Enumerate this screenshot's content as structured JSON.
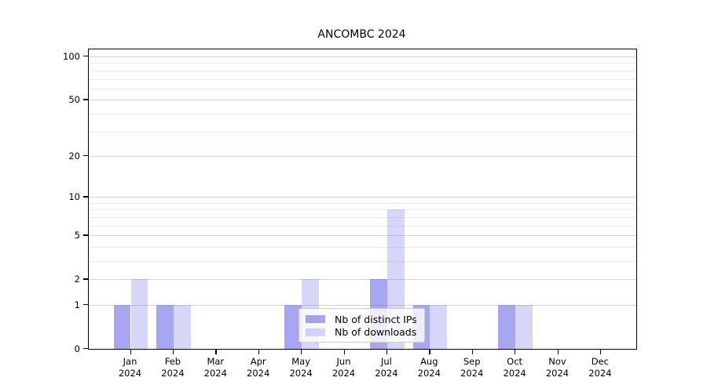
{
  "chart_data": {
    "type": "bar",
    "title": "ANCOMBC 2024",
    "categories": [
      "Jan",
      "Feb",
      "Mar",
      "Apr",
      "May",
      "Jun",
      "Jul",
      "Aug",
      "Sep",
      "Oct",
      "Nov",
      "Dec"
    ],
    "category_year": "2024",
    "series": [
      {
        "key": "distinct-ips",
        "name": "Nb of distinct IPs",
        "color": "#5c5ce6",
        "alpha": 0.55,
        "values": [
          1,
          1,
          0,
          0,
          1,
          0,
          2,
          1,
          0,
          1,
          0,
          0
        ]
      },
      {
        "key": "downloads",
        "name": "Nb of downloads",
        "color": "#5c5ce6",
        "alpha": 0.25,
        "values": [
          2,
          1,
          0,
          0,
          2,
          0,
          8,
          1,
          0,
          1,
          0,
          0
        ]
      }
    ],
    "yscale": "log1p",
    "ylim": [
      0,
      112
    ],
    "yticks_major": [
      0,
      1,
      2,
      5,
      10,
      20,
      50,
      100
    ],
    "yticks_minor": [
      3,
      4,
      6,
      7,
      8,
      9,
      30,
      40,
      60,
      70,
      80,
      90
    ],
    "grid": true,
    "legend_position": "lower center inside"
  }
}
